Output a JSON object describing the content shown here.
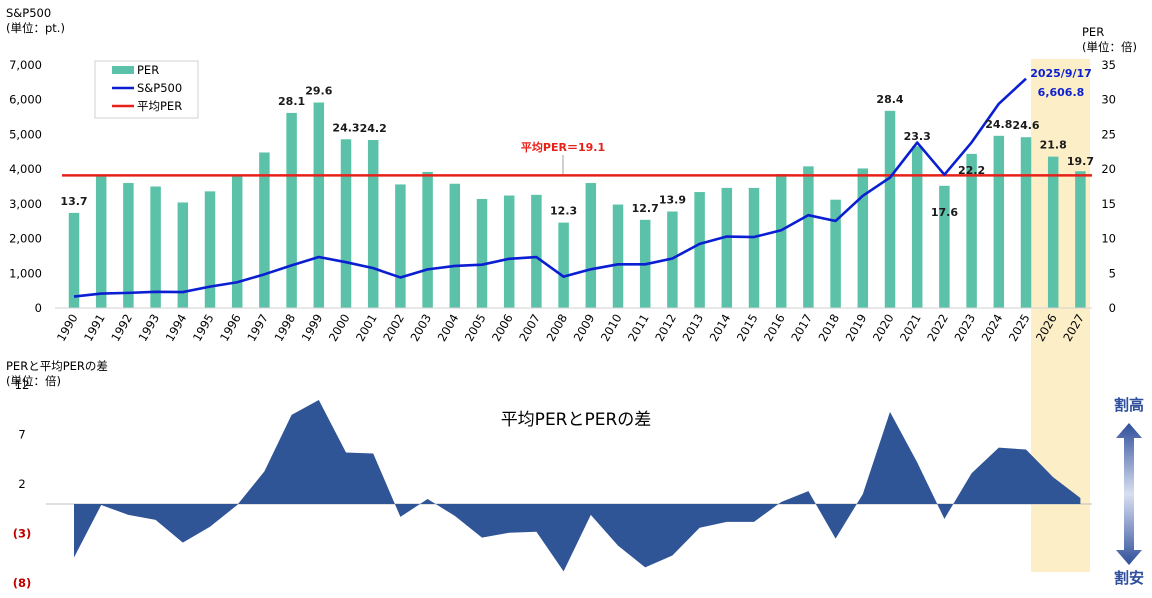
{
  "chart_data": [
    {
      "type": "bar+line",
      "y_left_label": "S&P500",
      "y_left_unit": "(単位：pt.)",
      "y_right_label": "PER",
      "y_right_unit": "(単位：倍)",
      "y_left_ticks": [
        "0",
        "1,000",
        "2,000",
        "3,000",
        "4,000",
        "5,000",
        "6,000",
        "7,000"
      ],
      "y_right_ticks": [
        "0",
        "5",
        "10",
        "15",
        "20",
        "25",
        "30",
        "35"
      ],
      "ylim_left": [
        0,
        7000
      ],
      "ylim_right": [
        0,
        35
      ],
      "categories": [
        "1990",
        "1991",
        "1992",
        "1993",
        "1994",
        "1995",
        "1996",
        "1997",
        "1998",
        "1999",
        "2000",
        "2001",
        "2002",
        "2003",
        "2004",
        "2005",
        "2006",
        "2007",
        "2008",
        "2009",
        "2010",
        "2011",
        "2012",
        "2013",
        "2014",
        "2015",
        "2016",
        "2017",
        "2018",
        "2019",
        "2020",
        "2021",
        "2022",
        "2023",
        "2024",
        "2025",
        "2026",
        "2027"
      ],
      "per": [
        13.7,
        19.0,
        18.0,
        17.5,
        15.2,
        16.8,
        19.0,
        22.4,
        28.1,
        29.6,
        24.3,
        24.2,
        17.8,
        19.6,
        17.9,
        15.7,
        16.2,
        16.3,
        12.3,
        18.0,
        14.9,
        12.7,
        13.9,
        16.7,
        17.3,
        17.3,
        19.3,
        20.4,
        15.6,
        20.1,
        28.4,
        23.3,
        17.6,
        22.2,
        24.8,
        24.6,
        21.8,
        19.7
      ],
      "per_labels": [
        {
          "year": "1990",
          "text": "13.7"
        },
        {
          "year": "1998",
          "text": "28.1"
        },
        {
          "year": "1999",
          "text": "29.6"
        },
        {
          "year": "2000",
          "text": "24.3"
        },
        {
          "year": "2001",
          "text": "24.2"
        },
        {
          "year": "2008",
          "text": "12.3"
        },
        {
          "year": "2011",
          "text": "12.7"
        },
        {
          "year": "2012",
          "text": "13.9"
        },
        {
          "year": "2020",
          "text": "28.4"
        },
        {
          "year": "2021",
          "text": "23.3"
        },
        {
          "year": "2022",
          "text": "17.6"
        },
        {
          "year": "2023",
          "text": "22.2"
        },
        {
          "year": "2024",
          "text": "24.8"
        },
        {
          "year": "2025",
          "text": "24.6"
        },
        {
          "year": "2026",
          "text": "21.8"
        },
        {
          "year": "2027",
          "text": "19.7"
        }
      ],
      "sp500_x": [
        "1990",
        "1991",
        "1992",
        "1993",
        "1994",
        "1995",
        "1996",
        "1997",
        "1998",
        "1999",
        "2000",
        "2001",
        "2002",
        "2003",
        "2004",
        "2005",
        "2006",
        "2007",
        "2008",
        "2009",
        "2010",
        "2011",
        "2012",
        "2013",
        "2014",
        "2015",
        "2016",
        "2017",
        "2018",
        "2019",
        "2020",
        "2021",
        "2022",
        "2023",
        "2024"
      ],
      "sp500": [
        330,
        417,
        436,
        466,
        459,
        616,
        741,
        970,
        1229,
        1469,
        1320,
        1148,
        880,
        1112,
        1212,
        1248,
        1418,
        1468,
        903,
        1115,
        1258,
        1258,
        1426,
        1848,
        2059,
        2044,
        2239,
        2674,
        2507,
        3231,
        3756,
        4766,
        3840,
        4770,
        5882
      ],
      "sp500_latest": {
        "label": "2025/9/17",
        "value": 6606.8,
        "value_text": "6,606.8"
      },
      "average_per": 19.1,
      "average_label": "平均PER＝19.1",
      "legend": [
        "PER",
        "S&P500",
        "平均PER"
      ],
      "colors": {
        "per": "#5BC2A9",
        "sp500": "#0A1ED2",
        "average": "#E8201A",
        "highlight": "#FCEFC8"
      }
    },
    {
      "type": "area",
      "title": "平均PERとPERの差",
      "y_label": "PERと平均PERの差",
      "y_unit": "(単位：倍)",
      "y_ticks": [
        "12",
        "7",
        "2",
        "(3)",
        "(8)"
      ],
      "ylim": [
        -8,
        12
      ],
      "categories": [
        "1990",
        "1991",
        "1992",
        "1993",
        "1994",
        "1995",
        "1996",
        "1997",
        "1998",
        "1999",
        "2000",
        "2001",
        "2002",
        "2003",
        "2004",
        "2005",
        "2006",
        "2007",
        "2008",
        "2009",
        "2010",
        "2011",
        "2012",
        "2013",
        "2014",
        "2015",
        "2016",
        "2017",
        "2018",
        "2019",
        "2020",
        "2021",
        "2022",
        "2023",
        "2024",
        "2025",
        "2026",
        "2027"
      ],
      "values": [
        -5.4,
        -0.1,
        -1.1,
        -1.6,
        -3.9,
        -2.3,
        -0.1,
        3.3,
        9.0,
        10.5,
        5.2,
        5.1,
        -1.3,
        0.5,
        -1.2,
        -3.4,
        -2.9,
        -2.8,
        -6.8,
        -1.1,
        -4.2,
        -6.4,
        -5.2,
        -2.4,
        -1.8,
        -1.8,
        0.2,
        1.3,
        -3.5,
        1.0,
        9.3,
        4.2,
        -1.5,
        3.1,
        5.7,
        5.5,
        2.7,
        0.6
      ],
      "color": "#2F5597",
      "arrow_top": "割高",
      "arrow_bottom": "割安"
    }
  ]
}
